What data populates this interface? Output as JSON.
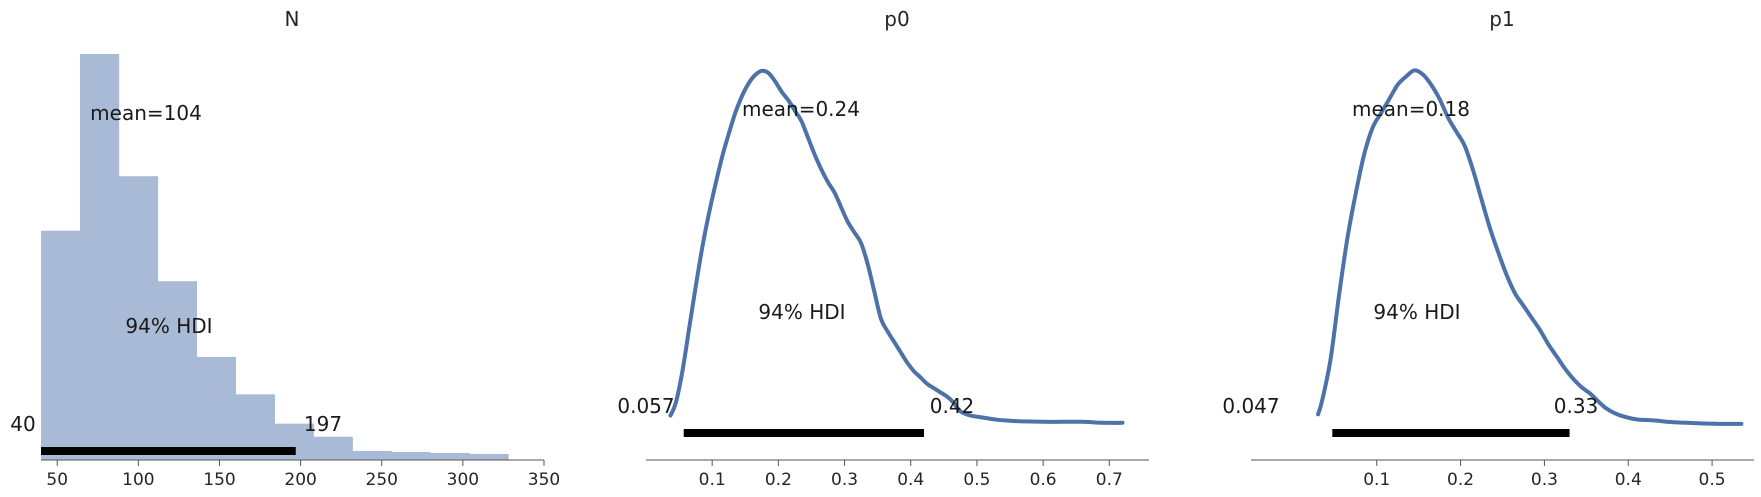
{
  "chart_data": [
    {
      "type": "bar",
      "title": "N",
      "xlim": [
        40,
        350
      ],
      "xticks": [
        50,
        100,
        150,
        200,
        250,
        300,
        350
      ],
      "bin_edges": [
        40,
        64,
        88,
        112,
        136,
        160,
        184,
        208,
        232,
        256,
        280,
        304,
        328
      ],
      "counts": [
        227,
        402,
        281,
        177,
        102,
        65,
        36,
        23,
        9,
        8,
        7,
        6
      ],
      "ylim": [
        0,
        402
      ],
      "mean_label": "mean=104",
      "hdi_label": "94% HDI",
      "hdi": [
        40,
        197
      ],
      "hdi_low_label": "40",
      "hdi_high_label": "197"
    },
    {
      "type": "line",
      "title": "p0",
      "xlim": [
        0.0,
        0.76
      ],
      "xticks": [
        0.1,
        0.2,
        0.3,
        0.4,
        0.5,
        0.6,
        0.7
      ],
      "x": [
        0.037,
        0.045,
        0.055,
        0.065,
        0.075,
        0.085,
        0.095,
        0.105,
        0.115,
        0.125,
        0.135,
        0.145,
        0.155,
        0.165,
        0.175,
        0.185,
        0.195,
        0.205,
        0.215,
        0.225,
        0.235,
        0.245,
        0.255,
        0.265,
        0.275,
        0.285,
        0.295,
        0.305,
        0.315,
        0.325,
        0.335,
        0.345,
        0.355,
        0.365,
        0.375,
        0.385,
        0.395,
        0.405,
        0.415,
        0.425,
        0.435,
        0.445,
        0.455,
        0.465,
        0.475,
        0.49,
        0.51,
        0.53,
        0.55,
        0.57,
        0.6,
        0.63,
        0.66,
        0.69,
        0.72
      ],
      "y": [
        0.4,
        1.0,
        2.5,
        4.5,
        6.5,
        8.4,
        10.0,
        11.4,
        12.7,
        13.8,
        14.8,
        15.6,
        16.2,
        16.6,
        16.8,
        16.7,
        16.3,
        15.8,
        15.4,
        14.9,
        14.4,
        13.6,
        12.8,
        12.1,
        11.5,
        11.0,
        10.3,
        9.6,
        9.1,
        8.6,
        7.6,
        6.3,
        5.0,
        4.4,
        3.9,
        3.4,
        2.9,
        2.5,
        2.2,
        1.9,
        1.7,
        1.5,
        1.3,
        1.0,
        0.6,
        0.4,
        0.3,
        0.2,
        0.15,
        0.12,
        0.1,
        0.1,
        0.1,
        0.05,
        0.05
      ],
      "ylim": [
        -1.1,
        17.6
      ],
      "mean_label": "mean=0.24",
      "hdi_label": "94% HDI",
      "hdi": [
        0.057,
        0.42
      ],
      "hdi_low_label": "0.057",
      "hdi_high_label": "0.42"
    },
    {
      "type": "line",
      "title": "p1",
      "xlim": [
        -0.05,
        0.55
      ],
      "xticks": [
        0.1,
        0.2,
        0.3,
        0.4,
        0.5
      ],
      "x": [
        0.03,
        0.035,
        0.045,
        0.055,
        0.065,
        0.075,
        0.085,
        0.095,
        0.105,
        0.115,
        0.125,
        0.135,
        0.145,
        0.155,
        0.165,
        0.175,
        0.185,
        0.195,
        0.205,
        0.215,
        0.225,
        0.235,
        0.245,
        0.255,
        0.265,
        0.275,
        0.285,
        0.295,
        0.305,
        0.315,
        0.325,
        0.335,
        0.345,
        0.355,
        0.365,
        0.375,
        0.39,
        0.41,
        0.43,
        0.45,
        0.47,
        0.49,
        0.51,
        0.535
      ],
      "y": [
        0.5,
        1.2,
        3.2,
        6.3,
        9.1,
        11.3,
        13.2,
        14.5,
        15.2,
        15.9,
        16.6,
        17.0,
        17.3,
        17.1,
        16.6,
        15.9,
        15.0,
        14.3,
        13.6,
        12.4,
        11.0,
        9.6,
        8.4,
        7.3,
        6.4,
        5.8,
        5.2,
        4.6,
        3.9,
        3.3,
        2.7,
        2.2,
        1.8,
        1.5,
        1.1,
        0.75,
        0.45,
        0.25,
        0.2,
        0.12,
        0.08,
        0.05,
        0.03,
        0.03
      ],
      "ylim": [
        -1.1,
        18.1
      ],
      "mean_label": "mean=0.18",
      "hdi_label": "94% HDI",
      "hdi": [
        0.047,
        0.33
      ],
      "hdi_low_label": "0.047",
      "hdi_high_label": "0.33"
    }
  ]
}
